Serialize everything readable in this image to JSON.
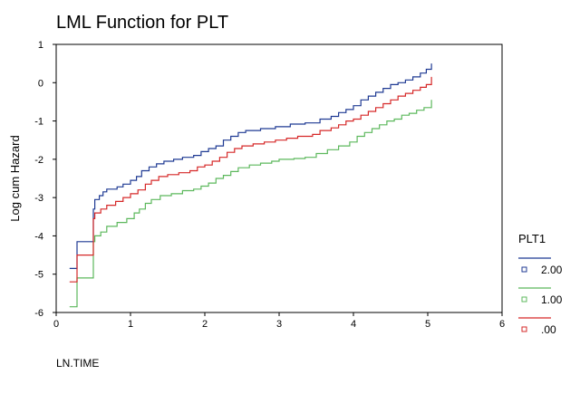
{
  "chart_data": {
    "type": "line",
    "step": true,
    "title": "LML Function for PLT",
    "xlabel": "LN.TIME",
    "ylabel": "Log cum Hazard",
    "xlim": [
      0,
      6
    ],
    "ylim": [
      -6,
      1
    ],
    "xticks": [
      "0",
      "1",
      "2",
      "3",
      "4",
      "5",
      "6"
    ],
    "yticks": [
      "-6",
      "-5",
      "-4",
      "-3",
      "-2",
      "-1",
      "0",
      "1"
    ],
    "grid": false,
    "legend": {
      "title": "PLT1",
      "placement": "right"
    },
    "series": [
      {
        "name": "2.00",
        "color": "#1f3a93",
        "points": [
          [
            0.18,
            -4.85
          ],
          [
            0.28,
            -4.15
          ],
          [
            0.5,
            -3.3
          ],
          [
            0.52,
            -3.05
          ],
          [
            0.58,
            -2.95
          ],
          [
            0.63,
            -2.85
          ],
          [
            0.68,
            -2.78
          ],
          [
            0.82,
            -2.72
          ],
          [
            0.9,
            -2.65
          ],
          [
            1.0,
            -2.55
          ],
          [
            1.08,
            -2.45
          ],
          [
            1.15,
            -2.3
          ],
          [
            1.25,
            -2.2
          ],
          [
            1.35,
            -2.12
          ],
          [
            1.45,
            -2.05
          ],
          [
            1.58,
            -2.0
          ],
          [
            1.7,
            -1.95
          ],
          [
            1.85,
            -1.9
          ],
          [
            1.95,
            -1.8
          ],
          [
            2.05,
            -1.72
          ],
          [
            2.15,
            -1.65
          ],
          [
            2.25,
            -1.5
          ],
          [
            2.35,
            -1.4
          ],
          [
            2.45,
            -1.3
          ],
          [
            2.55,
            -1.25
          ],
          [
            2.75,
            -1.2
          ],
          [
            2.95,
            -1.15
          ],
          [
            3.15,
            -1.08
          ],
          [
            3.35,
            -1.05
          ],
          [
            3.55,
            -0.95
          ],
          [
            3.7,
            -0.88
          ],
          [
            3.8,
            -0.78
          ],
          [
            3.9,
            -0.7
          ],
          [
            4.0,
            -0.6
          ],
          [
            4.1,
            -0.45
          ],
          [
            4.2,
            -0.35
          ],
          [
            4.3,
            -0.25
          ],
          [
            4.4,
            -0.15
          ],
          [
            4.5,
            -0.05
          ],
          [
            4.6,
            0.0
          ],
          [
            4.7,
            0.07
          ],
          [
            4.8,
            0.15
          ],
          [
            4.9,
            0.25
          ],
          [
            4.98,
            0.35
          ],
          [
            5.05,
            0.5
          ]
        ]
      },
      {
        "name": "1.00",
        "color": "#5cb85c",
        "points": [
          [
            0.18,
            -5.85
          ],
          [
            0.28,
            -5.1
          ],
          [
            0.5,
            -4.15
          ],
          [
            0.52,
            -4.0
          ],
          [
            0.6,
            -3.9
          ],
          [
            0.68,
            -3.75
          ],
          [
            0.82,
            -3.65
          ],
          [
            0.95,
            -3.55
          ],
          [
            1.05,
            -3.4
          ],
          [
            1.12,
            -3.3
          ],
          [
            1.2,
            -3.15
          ],
          [
            1.28,
            -3.05
          ],
          [
            1.4,
            -2.95
          ],
          [
            1.55,
            -2.9
          ],
          [
            1.7,
            -2.82
          ],
          [
            1.85,
            -2.78
          ],
          [
            1.95,
            -2.7
          ],
          [
            2.05,
            -2.62
          ],
          [
            2.15,
            -2.5
          ],
          [
            2.25,
            -2.42
          ],
          [
            2.35,
            -2.32
          ],
          [
            2.45,
            -2.22
          ],
          [
            2.6,
            -2.15
          ],
          [
            2.75,
            -2.1
          ],
          [
            2.9,
            -2.05
          ],
          [
            3.0,
            -2.0
          ],
          [
            3.2,
            -1.98
          ],
          [
            3.35,
            -1.95
          ],
          [
            3.5,
            -1.85
          ],
          [
            3.65,
            -1.75
          ],
          [
            3.8,
            -1.65
          ],
          [
            3.95,
            -1.55
          ],
          [
            4.05,
            -1.4
          ],
          [
            4.15,
            -1.3
          ],
          [
            4.25,
            -1.2
          ],
          [
            4.35,
            -1.1
          ],
          [
            4.45,
            -1.0
          ],
          [
            4.55,
            -0.95
          ],
          [
            4.65,
            -0.85
          ],
          [
            4.75,
            -0.8
          ],
          [
            4.85,
            -0.72
          ],
          [
            4.95,
            -0.65
          ],
          [
            5.05,
            -0.45
          ]
        ]
      },
      {
        "name": ".00",
        "color": "#d62828",
        "points": [
          [
            0.18,
            -5.2
          ],
          [
            0.28,
            -4.5
          ],
          [
            0.5,
            -3.55
          ],
          [
            0.52,
            -3.4
          ],
          [
            0.6,
            -3.3
          ],
          [
            0.68,
            -3.2
          ],
          [
            0.8,
            -3.1
          ],
          [
            0.9,
            -3.0
          ],
          [
            1.0,
            -2.9
          ],
          [
            1.1,
            -2.8
          ],
          [
            1.2,
            -2.65
          ],
          [
            1.28,
            -2.55
          ],
          [
            1.38,
            -2.45
          ],
          [
            1.5,
            -2.4
          ],
          [
            1.65,
            -2.35
          ],
          [
            1.8,
            -2.3
          ],
          [
            1.9,
            -2.2
          ],
          [
            2.0,
            -2.15
          ],
          [
            2.1,
            -2.05
          ],
          [
            2.2,
            -1.95
          ],
          [
            2.3,
            -1.82
          ],
          [
            2.4,
            -1.72
          ],
          [
            2.5,
            -1.65
          ],
          [
            2.65,
            -1.6
          ],
          [
            2.8,
            -1.55
          ],
          [
            2.95,
            -1.5
          ],
          [
            3.1,
            -1.45
          ],
          [
            3.25,
            -1.4
          ],
          [
            3.45,
            -1.35
          ],
          [
            3.55,
            -1.25
          ],
          [
            3.7,
            -1.18
          ],
          [
            3.8,
            -1.1
          ],
          [
            3.9,
            -1.0
          ],
          [
            4.0,
            -0.95
          ],
          [
            4.1,
            -0.85
          ],
          [
            4.2,
            -0.75
          ],
          [
            4.3,
            -0.65
          ],
          [
            4.4,
            -0.55
          ],
          [
            4.5,
            -0.45
          ],
          [
            4.6,
            -0.35
          ],
          [
            4.7,
            -0.28
          ],
          [
            4.8,
            -0.2
          ],
          [
            4.9,
            -0.12
          ],
          [
            4.98,
            -0.05
          ],
          [
            5.05,
            0.15
          ]
        ]
      }
    ]
  }
}
